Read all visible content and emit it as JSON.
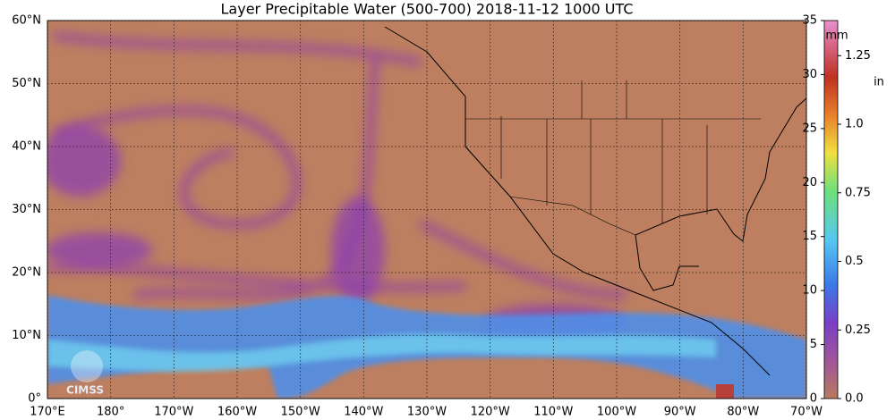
{
  "title": "Layer Precipitable Water (500-700)  2018-11-12 1000 UTC",
  "map": {
    "lon_range": [
      170,
      290
    ],
    "lat_range": [
      0,
      60
    ],
    "lat_ticks": [
      {
        "value": 0,
        "label": "0°"
      },
      {
        "value": 10,
        "label": "10°N"
      },
      {
        "value": 20,
        "label": "20°N"
      },
      {
        "value": 30,
        "label": "30°N"
      },
      {
        "value": 40,
        "label": "40°N"
      },
      {
        "value": 50,
        "label": "50°N"
      },
      {
        "value": 60,
        "label": "60°N"
      }
    ],
    "lon_ticks": [
      {
        "value": 170,
        "label": "170°E"
      },
      {
        "value": 180,
        "label": "180°"
      },
      {
        "value": 190,
        "label": "170°W"
      },
      {
        "value": 200,
        "label": "160°W"
      },
      {
        "value": 210,
        "label": "150°W"
      },
      {
        "value": 220,
        "label": "140°W"
      },
      {
        "value": 230,
        "label": "130°W"
      },
      {
        "value": 240,
        "label": "120°W"
      },
      {
        "value": 250,
        "label": "110°W"
      },
      {
        "value": 260,
        "label": "100°W"
      },
      {
        "value": 270,
        "label": "90°W"
      },
      {
        "value": 280,
        "label": "80°W"
      },
      {
        "value": 290,
        "label": "70°W"
      }
    ],
    "logo_text": "CIMSS"
  },
  "colorbar": {
    "range": [
      0,
      35
    ],
    "mm_unit": "mm",
    "in_unit": "in",
    "mm_ticks": [
      0,
      5,
      10,
      15,
      20,
      25,
      30,
      35
    ],
    "in_ticks": [
      {
        "value": 0,
        "label": "0.0"
      },
      {
        "value": 0.25,
        "label": "0.25"
      },
      {
        "value": 0.5,
        "label": "0.5"
      },
      {
        "value": 0.75,
        "label": "0.75"
      },
      {
        "value": 1.0,
        "label": "1.0"
      },
      {
        "value": 1.25,
        "label": "1.25"
      }
    ],
    "mm_per_in": 25.4
  }
}
